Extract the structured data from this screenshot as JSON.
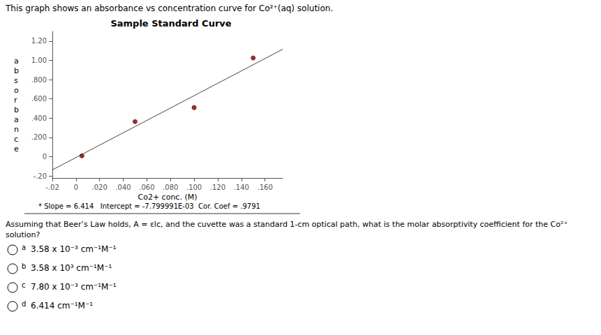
{
  "chart_data": {
    "type": "scatter",
    "title": "Sample Standard Curve",
    "xlabel": "Co2+ conc. (M)",
    "ylabel": "absorbance",
    "annotations": [
      "This graph shows an absorbance vs concentration curve for Co²⁺(aq) solution.",
      "* Slope = 6.414   Intercept = -7.799991E-03  Cor. Coef = .9791",
      "Assuming that Beer’s Law holds, A = εlc, and the cuvette was a standard 1-cm optical path, what is the molar absorptivity coefficient for the Co²⁺ solution?"
    ],
    "answers": [
      {
        "label": "a",
        "text": "3.58 x 10⁻³ cm⁻¹M⁻¹"
      },
      {
        "label": "b",
        "text": "3.58 x 10³ cm⁻¹M⁻¹"
      },
      {
        "label": "c",
        "text": "7.80 x 10⁻³ cm⁻¹M⁻¹"
      },
      {
        "label": "d",
        "text": "6.414 cm⁻¹M⁻¹"
      }
    ],
    "series": [
      {
        "type": "scatter",
        "color": "#6b0000",
        "marker": "circle",
        "x": [
          0.005,
          0.05,
          0.1,
          0.15
        ],
        "values": [
          0.01,
          0.365,
          0.51,
          1.025
        ]
      },
      {
        "type": "line",
        "color": "#444444",
        "line_style": "solid",
        "x": [
          -0.02,
          0.175
        ],
        "values": [
          -0.136079991,
          1.114650009
        ]
      }
    ],
    "xlim": [
      -0.02,
      0.175
    ],
    "ylim": [
      -0.22,
      1.3
    ],
    "xticks": [
      {
        "value": -0.02,
        "label": "-.02"
      },
      0,
      {
        "value": 0.02,
        "label": ".020"
      },
      {
        "value": 0.04,
        "label": ".040"
      },
      {
        "value": 0.06,
        "label": ".060"
      },
      {
        "value": 0.08,
        "label": ".080"
      },
      {
        "value": 0.1,
        "label": ".100"
      },
      {
        "value": 0.12,
        "label": ".120"
      },
      {
        "value": 0.14,
        "label": ".140"
      },
      {
        "value": 0.16,
        "label": ".160"
      }
    ],
    "yticks": [
      {
        "value": -0.2,
        "label": "-.20"
      },
      0,
      {
        "value": 0.2,
        "label": ".200"
      },
      {
        "value": 0.4,
        "label": ".400"
      },
      {
        "value": 0.6,
        "label": ".600"
      },
      {
        "value": 0.8,
        "label": ".800"
      },
      {
        "value": 1.0,
        "label": "1.00"
      },
      {
        "value": 1.2,
        "label": "1.20"
      }
    ],
    "grid": false
  }
}
